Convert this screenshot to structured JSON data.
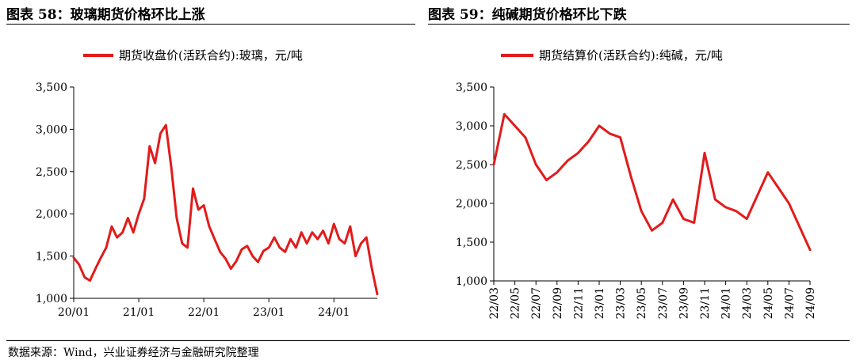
{
  "source_note": "数据来源：Wind，兴业证券经济与金融研究院整理",
  "colors": {
    "series": "#e21b1b",
    "axis": "#000000"
  },
  "chart_data": [
    {
      "type": "line",
      "figure_title": "图表 58：玻璃期货价格环比上涨",
      "legend_position": "top-center",
      "grid": false,
      "ylim": [
        1000,
        3500
      ],
      "yticks": [
        1000,
        1500,
        2000,
        2500,
        3000,
        3500
      ],
      "ytick_labels": [
        "1,000",
        "1,500",
        "2,000",
        "2,500",
        "3,000",
        "3,500"
      ],
      "x_range": [
        "2020-01",
        "2024-09"
      ],
      "xticks": [
        "2020-01",
        "2021-01",
        "2022-01",
        "2023-01",
        "2024-01"
      ],
      "xtick_labels": [
        "20/01",
        "21/01",
        "22/01",
        "23/01",
        "24/01"
      ],
      "series": [
        {
          "name": "期货收盘价(活跃合约):玻璃，元/吨",
          "x": [
            "2020-01",
            "2020-02",
            "2020-03",
            "2020-04",
            "2020-05",
            "2020-06",
            "2020-07",
            "2020-08",
            "2020-09",
            "2020-10",
            "2020-11",
            "2020-12",
            "2021-01",
            "2021-02",
            "2021-03",
            "2021-04",
            "2021-05",
            "2021-06",
            "2021-07",
            "2021-08",
            "2021-09",
            "2021-10",
            "2021-11",
            "2021-12",
            "2022-01",
            "2022-02",
            "2022-03",
            "2022-04",
            "2022-05",
            "2022-06",
            "2022-07",
            "2022-08",
            "2022-09",
            "2022-10",
            "2022-11",
            "2022-12",
            "2023-01",
            "2023-02",
            "2023-03",
            "2023-04",
            "2023-05",
            "2023-06",
            "2023-07",
            "2023-08",
            "2023-09",
            "2023-10",
            "2023-11",
            "2023-12",
            "2024-01",
            "2024-02",
            "2024-03",
            "2024-04",
            "2024-05",
            "2024-06",
            "2024-07",
            "2024-08",
            "2024-09"
          ],
          "values": [
            1480,
            1400,
            1250,
            1210,
            1350,
            1480,
            1600,
            1850,
            1720,
            1780,
            1950,
            1780,
            2000,
            2180,
            2800,
            2600,
            2950,
            3050,
            2550,
            1950,
            1650,
            1600,
            2300,
            2050,
            2100,
            1850,
            1700,
            1550,
            1470,
            1350,
            1440,
            1580,
            1620,
            1500,
            1430,
            1560,
            1600,
            1720,
            1600,
            1550,
            1700,
            1600,
            1780,
            1650,
            1780,
            1700,
            1800,
            1650,
            1880,
            1700,
            1650,
            1850,
            1500,
            1650,
            1720,
            1350,
            1050
          ]
        }
      ]
    },
    {
      "type": "line",
      "figure_title": "图表 59：纯碱期货价格环比下跌",
      "legend_position": "top-center",
      "grid": false,
      "ylim": [
        1000,
        3500
      ],
      "yticks": [
        1000,
        1500,
        2000,
        2500,
        3000,
        3500
      ],
      "ytick_labels": [
        "1,000",
        "1,500",
        "2,000",
        "2,500",
        "3,000",
        "3,500"
      ],
      "x_range": [
        "2022-03",
        "2024-09"
      ],
      "xticks": [
        "2022-03",
        "2022-05",
        "2022-07",
        "2022-09",
        "2022-11",
        "2023-01",
        "2023-03",
        "2023-05",
        "2023-07",
        "2023-09",
        "2023-11",
        "2024-01",
        "2024-03",
        "2024-05",
        "2024-07",
        "2024-09"
      ],
      "xtick_labels": [
        "22/03",
        "22/05",
        "22/07",
        "22/09",
        "22/11",
        "23/01",
        "23/03",
        "23/05",
        "23/07",
        "23/09",
        "23/11",
        "24/01",
        "24/03",
        "24/05",
        "24/07",
        "24/09"
      ],
      "series": [
        {
          "name": "期货结算价(活跃合约):纯碱，元/吨",
          "x": [
            "2022-03",
            "2022-04",
            "2022-05",
            "2022-06",
            "2022-07",
            "2022-08",
            "2022-09",
            "2022-10",
            "2022-11",
            "2022-12",
            "2023-01",
            "2023-02",
            "2023-03",
            "2023-04",
            "2023-05",
            "2023-06",
            "2023-07",
            "2023-08",
            "2023-09",
            "2023-10",
            "2023-11",
            "2023-12",
            "2024-01",
            "2024-02",
            "2024-03",
            "2024-04",
            "2024-05",
            "2024-06",
            "2024-07",
            "2024-08",
            "2024-09"
          ],
          "values": [
            2500,
            3150,
            3000,
            2850,
            2500,
            2300,
            2400,
            2550,
            2650,
            2800,
            3000,
            2900,
            2850,
            2350,
            1900,
            1650,
            1750,
            2050,
            1800,
            1750,
            2650,
            2050,
            1950,
            1900,
            1800,
            2100,
            2400,
            2200,
            2000,
            1700,
            1400
          ]
        }
      ]
    }
  ]
}
